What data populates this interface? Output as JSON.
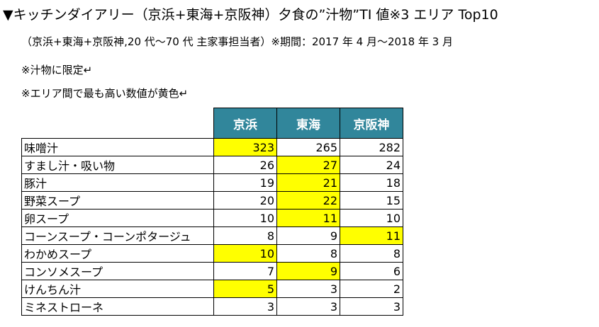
{
  "header": {
    "title": "▼キッチンダイアリー（京浜+東海+京阪神）夕食の”汁物”TI 値※3 エリア Top10",
    "subtitle": "（京浜+東海+京阪神,20 代～70 代 主家事担当者）※期間：2017 年 4 月～2018 年 3 月"
  },
  "notes": [
    "※汁物に限定↵",
    "※エリア間で最も高い数値が黄色↵"
  ],
  "table": {
    "columns": [
      "京浜",
      "東海",
      "京阪神"
    ],
    "header_color": "#31869b",
    "highlight_color": "#ffff00",
    "rows": [
      {
        "label": "味噌汁",
        "values": [
          323,
          265,
          282
        ],
        "highlight": 0
      },
      {
        "label": "すまし汁・吸い物",
        "values": [
          26,
          27,
          24
        ],
        "highlight": 1
      },
      {
        "label": "豚汁",
        "values": [
          19,
          21,
          18
        ],
        "highlight": 1
      },
      {
        "label": "野菜スープ",
        "values": [
          20,
          22,
          15
        ],
        "highlight": 1
      },
      {
        "label": "卵スープ",
        "values": [
          10,
          11,
          10
        ],
        "highlight": 1
      },
      {
        "label": "コーンスープ・コーンポタージュ",
        "values": [
          8,
          9,
          11
        ],
        "highlight": 2
      },
      {
        "label": "わかめスープ",
        "values": [
          10,
          8,
          8
        ],
        "highlight": 0
      },
      {
        "label": "コンソメスープ",
        "values": [
          7,
          9,
          6
        ],
        "highlight": 1
      },
      {
        "label": "けんちん汁",
        "values": [
          5,
          3,
          2
        ],
        "highlight": 0
      },
      {
        "label": "ミネストローネ",
        "values": [
          3,
          3,
          3
        ]
      }
    ]
  }
}
